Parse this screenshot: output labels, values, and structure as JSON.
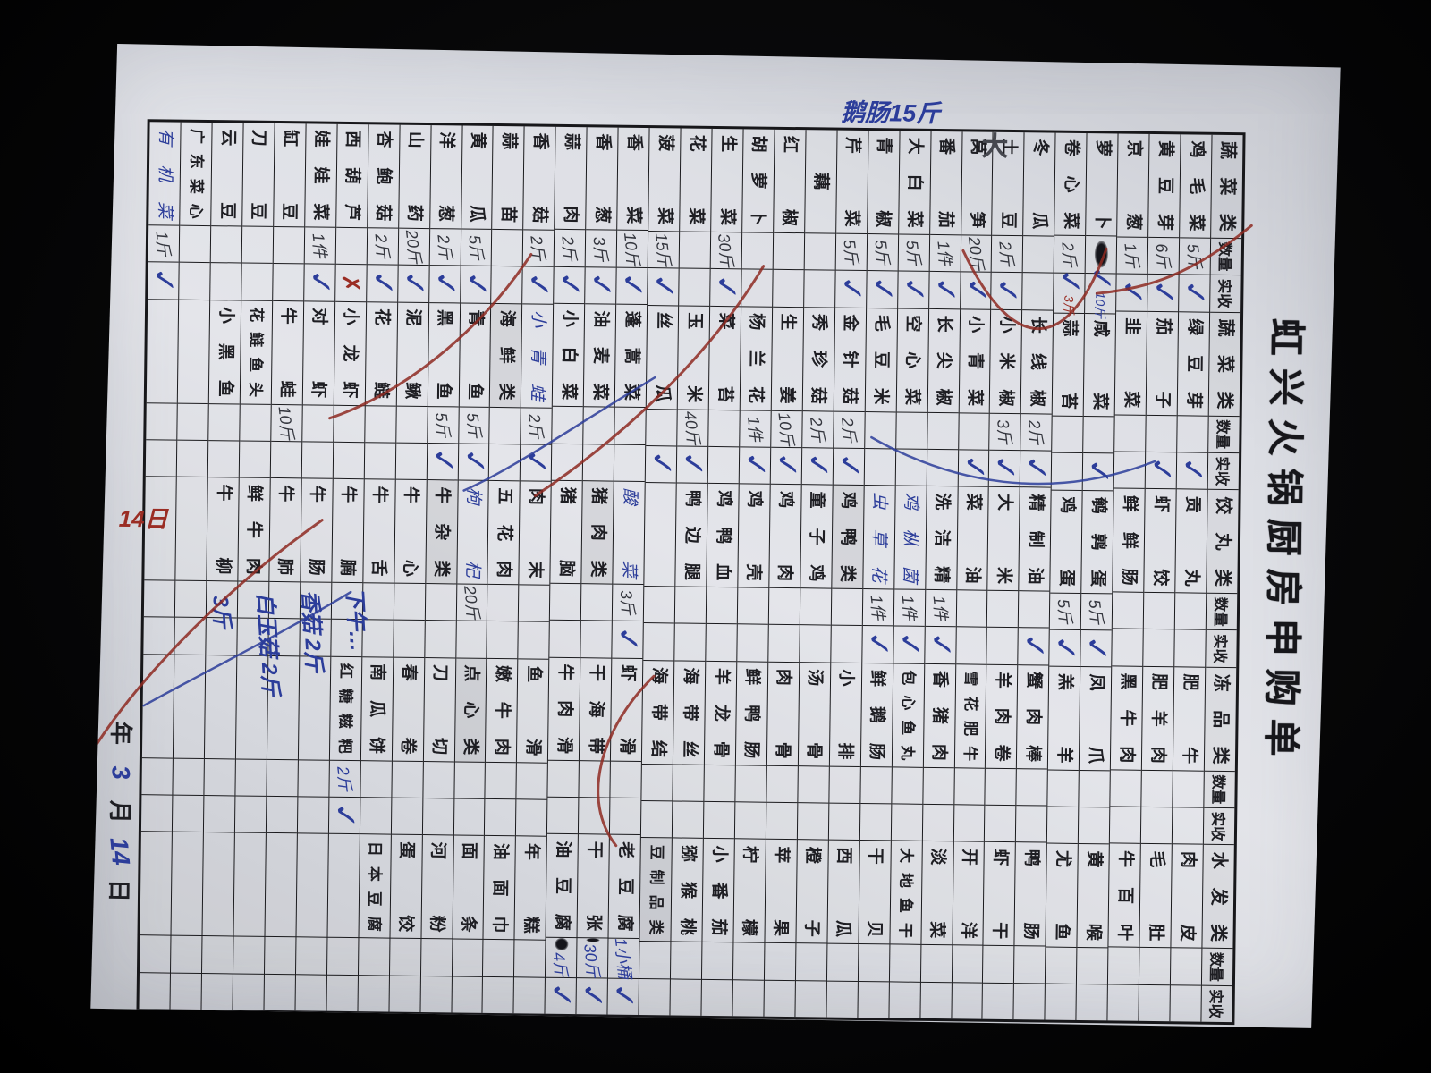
{
  "title": "虹兴火锅厨房申购单",
  "headers": {
    "qty": "数量",
    "recv": "实收"
  },
  "row_count": 34,
  "columns": [
    {
      "header": "蔬菜类",
      "rows": [
        {
          "n": "鸡毛菜",
          "q": "5斤",
          "r": "c"
        },
        {
          "n": "黄豆芽",
          "q": "6斤",
          "r": "c"
        },
        {
          "n": "京葱",
          "q": "1斤",
          "r": "c"
        },
        {
          "n": "萝卜",
          "blot": 1,
          "r": "c",
          "rn": "10斤",
          "rnc": "blue"
        },
        {
          "n": "卷心菜",
          "q": "2斤",
          "r": "c",
          "rn": "3斤",
          "rnc": "red"
        },
        {
          "n": "冬瓜"
        },
        {
          "n": "土豆",
          "q": "2斤",
          "r": "c"
        },
        {
          "n": "莴笋",
          "q": "20斤",
          "r": "c"
        },
        {
          "n": "番茄",
          "q": "1件",
          "r": "c"
        },
        {
          "n": "大白菜",
          "q": "5斤",
          "r": "c"
        },
        {
          "n": "青椒",
          "q": "5斤",
          "r": "c"
        },
        {
          "n": "芹菜",
          "q": "5斤",
          "r": "c"
        },
        {
          "n": "藕"
        },
        {
          "n": "红椒"
        },
        {
          "n": "胡萝卜"
        },
        {
          "n": "生菜",
          "q": "30斤",
          "r": "c"
        },
        {
          "n": "花菜"
        },
        {
          "n": "菠菜",
          "q": "15斤",
          "r": "c"
        },
        {
          "n": "香菜",
          "q": "10斤",
          "r": "c"
        },
        {
          "n": "香葱",
          "q": "3斤",
          "r": "c"
        },
        {
          "n": "蒜肉",
          "q": "2斤",
          "r": "c"
        },
        {
          "n": "香菇",
          "q": "2斤",
          "r": "c"
        },
        {
          "n": "蒜苗"
        },
        {
          "n": "黄瓜",
          "q": "5斤",
          "r": "c"
        },
        {
          "n": "洋葱",
          "q": "2斤",
          "r": "c"
        },
        {
          "n": "山药",
          "q": "20斤",
          "r": "c"
        },
        {
          "n": "杏鲍菇",
          "q": "2斤",
          "r": "c"
        },
        {
          "n": "西葫芦",
          "r": "x"
        },
        {
          "n": "娃娃菜",
          "q": "1件",
          "r": "c"
        },
        {
          "n": "缸豆"
        },
        {
          "n": "刀豆"
        },
        {
          "n": "云豆"
        },
        {
          "n": "广东菜心"
        },
        {
          "n": "有机菜",
          "hw": 1,
          "q": "1斤",
          "r": "c"
        }
      ]
    },
    {
      "header": "蔬菜类",
      "rows": [
        {
          "n": "绿豆芽",
          "r": "c"
        },
        {
          "n": "茄子",
          "r": "c"
        },
        {
          "n": "韭菜"
        },
        {
          "n": "咸菜",
          "r": "c"
        },
        {
          "n": "蒜苔"
        },
        {
          "n": "长线椒",
          "q": "2斤",
          "r": "c"
        },
        {
          "n": "小米椒",
          "q": "3斤",
          "r": "c"
        },
        {
          "n": "小青菜",
          "r": "c"
        },
        {
          "n": "长尖椒"
        },
        {
          "n": "空心菜"
        },
        {
          "n": "毛豆米"
        },
        {
          "n": "金针菇",
          "q": "2斤",
          "r": "c"
        },
        {
          "n": "秀珍菇",
          "q": "2斤",
          "r": "c"
        },
        {
          "n": "生姜",
          "q": "10斤",
          "r": "c"
        },
        {
          "n": "杨兰花",
          "q": "1件",
          "r": "c"
        },
        {
          "n": "菜苔"
        },
        {
          "n": "玉米",
          "q": "40斤",
          "r": "c"
        },
        {
          "n": "丝瓜",
          "r": "c"
        },
        {
          "n": "蓬蒿菜"
        },
        {
          "n": "油麦菜"
        },
        {
          "n": "小白菜"
        },
        {
          "n": "小青蛙",
          "hw": 1,
          "q": "2斤",
          "r": "c"
        },
        {
          "n": "海鲜类",
          "sec": 1
        },
        {
          "n": "青鱼",
          "q": "5斤",
          "r": "c"
        },
        {
          "n": "黑鱼",
          "q": "5斤",
          "r": "c"
        },
        {
          "n": "泥鳅"
        },
        {
          "n": "花鲢"
        },
        {
          "n": "小龙虾"
        },
        {
          "n": "对虾"
        },
        {
          "n": "牛蛙",
          "q": "10斤"
        },
        {
          "n": "花鲢鱼头"
        },
        {
          "n": "小黑鱼"
        },
        {},
        {}
      ]
    },
    {
      "header": "饺丸类",
      "rows": [
        {
          "n": "贡丸"
        },
        {
          "n": "虾饺"
        },
        {
          "n": "鲜鲜肠"
        },
        {
          "n": "鹌鹑蛋",
          "q": "5斤",
          "r": "c"
        },
        {
          "n": "鸡蛋",
          "q": "5斤",
          "r": "c"
        },
        {
          "n": "精制油",
          "r": "c"
        },
        {
          "n": "大米"
        },
        {
          "n": "菜油"
        },
        {
          "n": "洗洁精",
          "q": "1件",
          "r": "c"
        },
        {
          "n": "鸡枞菌",
          "hw": 1,
          "q": "1件",
          "r": "c"
        },
        {
          "n": "虫草花",
          "hw": 1,
          "q": "1件",
          "r": "c"
        },
        {
          "n": "鸡鸭类",
          "sec": 1
        },
        {
          "n": "童子鸡"
        },
        {
          "n": "鸡肉"
        },
        {
          "n": "鸡壳"
        },
        {
          "n": "鸡鸭血"
        },
        {
          "n": "鸭边腿"
        },
        {},
        {
          "n": "酸菜",
          "hw": 1,
          "q": "3斤",
          "r": "c"
        },
        {
          "n": "猪肉类",
          "sec": 1
        },
        {
          "n": "猪脑"
        },
        {
          "n": "肉末"
        },
        {
          "n": "五花肉"
        },
        {
          "n": "枸杞",
          "hw": 1,
          "q": "20斤"
        },
        {
          "n": "牛杂类",
          "sec": 1
        },
        {
          "n": "牛心"
        },
        {
          "n": "牛舌"
        },
        {
          "n": "牛腩"
        },
        {
          "n": "牛肠"
        },
        {
          "n": "牛肺"
        },
        {
          "n": "鲜牛肉"
        },
        {
          "n": "牛柳"
        },
        {},
        {}
      ]
    },
    {
      "header": "冻品类",
      "rows": [
        {
          "n": "肥牛"
        },
        {
          "n": "肥羊肉"
        },
        {
          "n": "黑牛肉"
        },
        {
          "n": "凤爪"
        },
        {
          "n": "羔羊"
        },
        {
          "n": "蟹肉棒"
        },
        {
          "n": "羊肉卷"
        },
        {
          "n": "雪花肥牛"
        },
        {
          "n": "香猪肉"
        },
        {
          "n": "包心鱼丸"
        },
        {
          "n": "鲜鹅肠"
        },
        {
          "n": "小排"
        },
        {
          "n": "汤骨"
        },
        {
          "n": "肉骨"
        },
        {
          "n": "鲜鸭肠"
        },
        {
          "n": "羊龙骨"
        },
        {
          "n": "海带丝"
        },
        {
          "n": "海带结"
        },
        {
          "n": "虾滑"
        },
        {
          "n": "干海带"
        },
        {
          "n": "牛肉滑"
        },
        {
          "n": "鱼滑"
        },
        {
          "n": "嫩牛肉"
        },
        {
          "n": "点心类",
          "sec": 1
        },
        {
          "n": "刀切"
        },
        {
          "n": "春卷"
        },
        {
          "n": "南瓜饼"
        },
        {
          "n": "红糖糍粑",
          "q": "2斤",
          "r": "c",
          "qb": 1
        },
        {},
        {},
        {},
        {},
        {},
        {}
      ]
    },
    {
      "header": "水发类",
      "rows": [
        {
          "n": "肉皮"
        },
        {
          "n": "毛肚"
        },
        {
          "n": "牛百叶"
        },
        {
          "n": "黄喉"
        },
        {
          "n": "尤鱼"
        },
        {
          "n": "鸭肠"
        },
        {
          "n": "虾干"
        },
        {
          "n": "开洋"
        },
        {
          "n": "淡菜"
        },
        {
          "n": "大地鱼干"
        },
        {
          "n": "干贝"
        },
        {
          "n": "西瓜"
        },
        {
          "n": "橙子"
        },
        {
          "n": "苹果"
        },
        {
          "n": "柠檬"
        },
        {
          "n": "小番茄"
        },
        {
          "n": "猕猴桃"
        },
        {
          "n": "豆制品类",
          "sec": 1
        },
        {
          "n": "老豆腐",
          "q": "1小桶",
          "r": "c",
          "qb": 1
        },
        {
          "n": "干张",
          "q": "30斤",
          "r": "c",
          "qb": 1,
          "blot": 1
        },
        {
          "n": "油豆腐",
          "q": "4斤",
          "r": "c",
          "qb": 1,
          "blot": 1
        },
        {
          "n": "年糕"
        },
        {
          "n": "油面巾"
        },
        {
          "n": "面条"
        },
        {
          "n": "河粉"
        },
        {
          "n": "蛋饺"
        },
        {
          "n": "日本豆腐"
        },
        {},
        {},
        {},
        {},
        {},
        {},
        {}
      ]
    }
  ],
  "annotations": {
    "margin_item_note": "鹅肠15斤",
    "margin_size_note": "大",
    "margin_date_note": "14日",
    "dimsum_scribble_lines": [
      "下午…",
      "香菇 2斤",
      "白玉菇 2斤",
      "3斤"
    ]
  },
  "date_line": {
    "year_label": "年",
    "month_label": "月",
    "day_label": "日",
    "month_value": "3",
    "day_value": "14"
  },
  "colors": {
    "paper": "#d9dbe0",
    "ink": "#1e1e23",
    "pen_blue": "#2c3d9a",
    "pen_red": "#9a2d24",
    "pencil": "#46484f",
    "background": "#060607"
  }
}
